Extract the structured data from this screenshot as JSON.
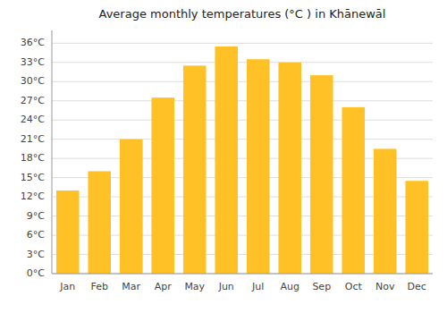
{
  "chart_data": {
    "type": "bar",
    "title": "Average monthly temperatures (°C ) in Khānewāl",
    "categories": [
      "Jan",
      "Feb",
      "Mar",
      "Apr",
      "May",
      "Jun",
      "Jul",
      "Aug",
      "Sep",
      "Oct",
      "Nov",
      "Dec"
    ],
    "values": [
      13,
      16,
      21,
      27.5,
      32.5,
      35.5,
      33.5,
      33,
      31,
      26,
      19.5,
      14.5
    ],
    "color": "#FFC125",
    "ylim": [
      0,
      38
    ],
    "yticks": [
      {
        "value": 0,
        "label": "0°C"
      },
      {
        "value": 3,
        "label": "3°C"
      },
      {
        "value": 6,
        "label": "6°C"
      },
      {
        "value": 9,
        "label": "9°C"
      },
      {
        "value": 12,
        "label": "12°C"
      },
      {
        "value": 15,
        "label": "15°C"
      },
      {
        "value": 18,
        "label": "18°C"
      },
      {
        "value": 21,
        "label": "21°C"
      },
      {
        "value": 24,
        "label": "24°C"
      },
      {
        "value": 27,
        "label": "27°C"
      },
      {
        "value": 30,
        "label": "30°C"
      },
      {
        "value": 33,
        "label": "33°C"
      },
      {
        "value": 36,
        "label": "36°C"
      }
    ],
    "grid": true
  }
}
